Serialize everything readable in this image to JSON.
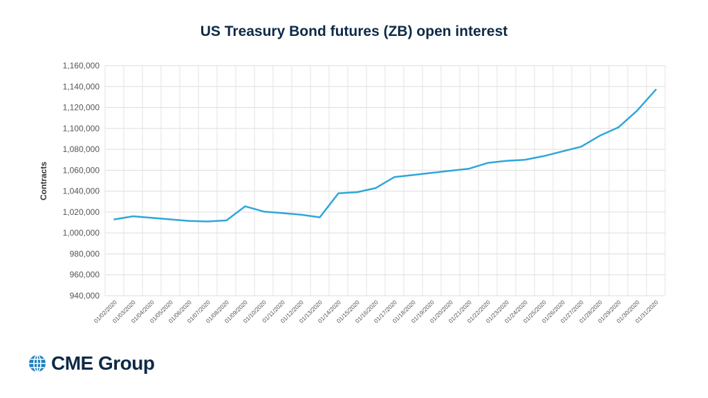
{
  "chart_data": {
    "type": "line",
    "title": "US Treasury Bond futures (ZB) open interest",
    "xlabel": "",
    "ylabel": "Contracts",
    "ylim": [
      940000,
      1160000
    ],
    "yticks": [
      940000,
      960000,
      980000,
      1000000,
      1020000,
      1040000,
      1060000,
      1080000,
      1100000,
      1120000,
      1140000,
      1160000
    ],
    "ytick_labels": [
      "940,000",
      "960,000",
      "980,000",
      "1,000,000",
      "1,020,000",
      "1,040,000",
      "1,060,000",
      "1,080,000",
      "1,100,000",
      "1,120,000",
      "1,140,000",
      "1,160,000"
    ],
    "categories": [
      "01/02/2020",
      "01/03/2020",
      "01/04/2020",
      "01/05/2020",
      "01/06/2020",
      "01/07/2020",
      "01/08/2020",
      "01/09/2020",
      "01/10/2020",
      "01/11/2020",
      "01/12/2020",
      "01/13/2020",
      "01/14/2020",
      "01/15/2020",
      "01/16/2020",
      "01/17/2020",
      "01/18/2020",
      "01/19/2020",
      "01/20/2020",
      "01/21/2020",
      "01/22/2020",
      "01/23/2020",
      "01/24/2020",
      "01/25/2020",
      "01/26/2020",
      "01/27/2020",
      "01/28/2020",
      "01/29/2020",
      "01/30/2020",
      "01/31/2020"
    ],
    "series": [
      {
        "name": "Open interest",
        "color": "#2ea6d9",
        "values": [
          1013000,
          1016000,
          1014500,
          1013000,
          1011500,
          1011000,
          1012000,
          1025500,
          1020500,
          1019000,
          1017500,
          1015000,
          1038000,
          1039000,
          1043000,
          1053500,
          1055500,
          1057500,
          1059500,
          1061500,
          1067000,
          1069000,
          1070000,
          1073500,
          1078000,
          1082500,
          1093000,
          1101000,
          1117000,
          1137000
        ]
      }
    ],
    "grid": true,
    "legend": "none"
  },
  "brand": {
    "name": "CME Group",
    "color": "#0e2a47",
    "accent": "#1a7fc1"
  }
}
